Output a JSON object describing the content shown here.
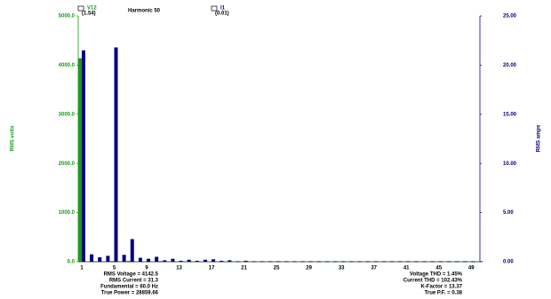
{
  "chart_data": {
    "type": "bar",
    "header": {
      "series1_label": "V12",
      "series1_value": "(1.54)",
      "harmonic": "Harmonic 50",
      "series2_label": "I1",
      "series2_value": "(0.01)"
    },
    "ylabel": "RMS volts",
    "y2label": "RMS amps",
    "categories": [
      1,
      null,
      null,
      null,
      5,
      null,
      null,
      null,
      9,
      null,
      null,
      null,
      13,
      null,
      null,
      null,
      17,
      null,
      null,
      null,
      21,
      null,
      null,
      null,
      25,
      null,
      null,
      null,
      29,
      null,
      null,
      null,
      33,
      null,
      null,
      null,
      37,
      null,
      null,
      null,
      41,
      null,
      null,
      null,
      45,
      null,
      null,
      null,
      49,
      null
    ],
    "ylim": [
      0,
      5000
    ],
    "yticks": [
      {
        "value": 0,
        "label": "0.0"
      },
      {
        "value": 1000,
        "label": "1000.0"
      },
      {
        "value": 2000,
        "label": "2000.0"
      },
      {
        "value": 3000,
        "label": "3000.0"
      },
      {
        "value": 4000,
        "label": "4000.0"
      },
      {
        "value": 5000,
        "label": "5000.0"
      }
    ],
    "y2lim": [
      0,
      25
    ],
    "y2ticks": [
      {
        "value": 0,
        "label": "0.00"
      },
      {
        "value": 5,
        "label": "5.00"
      },
      {
        "value": 10,
        "label": "10.00"
      },
      {
        "value": 15,
        "label": "15.00"
      },
      {
        "value": 20,
        "label": "20.00"
      },
      {
        "value": 25,
        "label": "25.00"
      }
    ],
    "series": [
      {
        "name": "V12",
        "color": "#1c9a1c",
        "values": [
          4140,
          10,
          10,
          10,
          15,
          10,
          20,
          10,
          10,
          10,
          15,
          10,
          10,
          10,
          10,
          10,
          10,
          10,
          10,
          10,
          10,
          10,
          10,
          10,
          10,
          10,
          10,
          10,
          10,
          10,
          10,
          10,
          10,
          10,
          10,
          10,
          10,
          10,
          10,
          10,
          10,
          10,
          10,
          10,
          10,
          10,
          10,
          10,
          10,
          10
        ]
      },
      {
        "name": "I1",
        "color": "#00007f",
        "axis": "y2",
        "values": [
          21.5,
          0.75,
          0.45,
          0.6,
          21.8,
          0.7,
          2.3,
          0.4,
          0.3,
          0.5,
          0.15,
          0.3,
          0.1,
          0.2,
          0.1,
          0.2,
          0.25,
          0.1,
          0.15,
          0.05,
          0.1,
          0.05,
          0.05,
          0.05,
          0.05,
          0.05,
          0.05,
          0.05,
          0.05,
          0.05,
          0.05,
          0.05,
          0.05,
          0.05,
          0.05,
          0.05,
          0.05,
          0.05,
          0.05,
          0.05,
          0.05,
          0.05,
          0.05,
          0.05,
          0.05,
          0.05,
          0.05,
          0.05,
          0.05,
          0.05
        ]
      }
    ],
    "stats_left": [
      "RMS Voltage = 4142.5",
      "RMS Current = 31.3",
      "Fundamental = 60.0 Hz",
      "True Power = 28859.66"
    ],
    "stats_right": [
      "Voltage THD = 1.45%",
      "Current THD = 102.43%",
      "K-Factor = 13.37",
      "True P.F. = 0.38"
    ]
  }
}
